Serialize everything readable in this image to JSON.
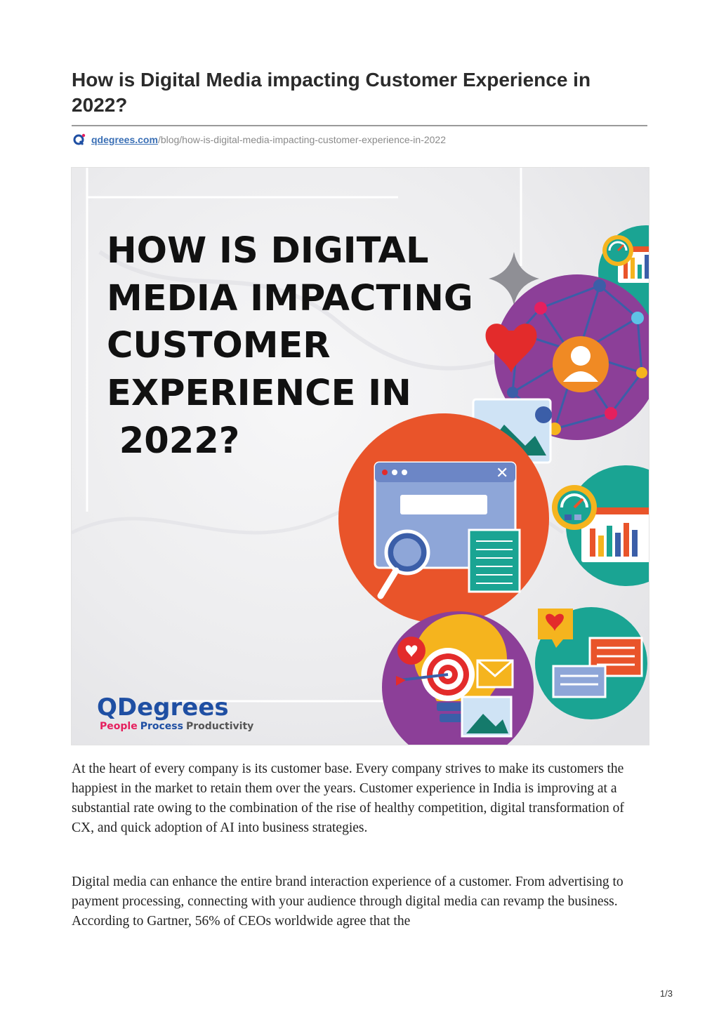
{
  "article": {
    "title": "How is Digital Media impacting Customer Experience in 2022?",
    "source_domain": "qdegrees.com",
    "source_path": "/blog/how-is-digital-media-impacting-customer-experience-in-2022",
    "paragraphs": [
      "At the heart of every company is its customer base. Every company strives to make its customers the happiest in the market to retain them over the years. Customer experience in India is improving at a substantial rate owing to the combination of the rise of healthy competition, digital transformation of CX, and quick adoption of AI into business strategies.",
      "Digital media can enhance the entire brand interaction experience of a customer. From advertising to payment processing, connecting with your audience through digital media can revamp the business. According to Gartner, 56% of CEOs worldwide agree that the"
    ]
  },
  "hero": {
    "headline_lines": [
      "HOW IS DIGITAL",
      "MEDIA IMPACTING",
      "CUSTOMER",
      "EXPERIENCE IN",
      " 2022?"
    ],
    "brand_name": "QDegrees",
    "tagline": {
      "people": "People",
      "process": "Process",
      "productivity": "Productivity"
    },
    "colors": {
      "purple": "#8c3f98",
      "teal": "#1aa493",
      "orange": "#e9542a",
      "brand_blue": "#1f4fa3",
      "brand_pink": "#e5205e"
    }
  },
  "footer": {
    "page_number": "1/3"
  }
}
